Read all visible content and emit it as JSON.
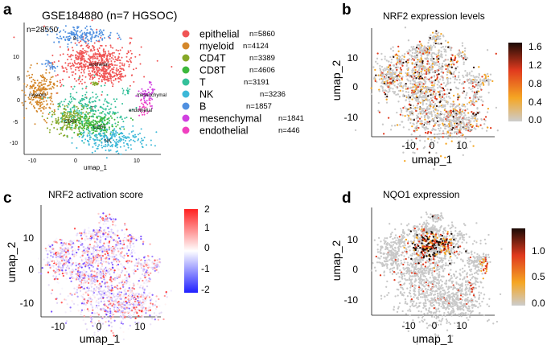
{
  "panels": {
    "a": {
      "letter": "a",
      "title": "GSE184880 (n=7 HGSOC)",
      "total": "n=28550",
      "xlabel": "umap_1",
      "xticks": [
        "-10",
        "0",
        "10"
      ],
      "yticks": [
        "10",
        "5",
        "0",
        "-5",
        "-10"
      ],
      "legend": [
        {
          "name": "epithelial",
          "count": "n=5860",
          "color": "#F05454"
        },
        {
          "name": "myeloid",
          "count": "n=4124",
          "color": "#D4872A"
        },
        {
          "name": "CD4T",
          "count": "n=3389",
          "color": "#86A828"
        },
        {
          "name": "CD8T",
          "count": "n=4606",
          "color": "#3CB83C"
        },
        {
          "name": "T",
          "count": "n=3191",
          "color": "#34C09A"
        },
        {
          "name": "NK",
          "count": "n=3236",
          "color": "#3CB8D8"
        },
        {
          "name": "B",
          "count": "n=1857",
          "color": "#5090E0"
        },
        {
          "name": "mesenchymal",
          "count": "n=1841",
          "color": "#D040E0"
        },
        {
          "name": "endothelial",
          "count": "n=446",
          "color": "#F040C0"
        }
      ],
      "cluster_labels": [
        "B",
        "epithelial",
        "myeloid",
        "mesenchymal",
        "endothelial",
        "T",
        "CD4T",
        "CD8T",
        "NK"
      ]
    },
    "b": {
      "letter": "b",
      "title": "NRF2 expression levels",
      "xlabel": "umap_1",
      "ylabel": "umap_2",
      "xticks": [
        "-10",
        "0",
        "10"
      ],
      "yticks": [
        "10",
        "0",
        "-10"
      ],
      "colorbar_ticks": [
        "1.6",
        "1.2",
        "0.8",
        "0.4",
        "0.0"
      ]
    },
    "c": {
      "letter": "c",
      "title": "NRF2 activation score",
      "xlabel": "umap_1",
      "ylabel": "umap_2",
      "xticks": [
        "-10",
        "0",
        "10"
      ],
      "yticks": [
        "10",
        "0",
        "-10"
      ],
      "colorbar_ticks": [
        "2",
        "1",
        "0",
        "-1",
        "-2"
      ]
    },
    "d": {
      "letter": "d",
      "title": "NQO1 expression",
      "xlabel": "umap_1",
      "ylabel": "umap_2",
      "xticks": [
        "-10",
        "0",
        "10"
      ],
      "yticks": [
        "10",
        "0",
        "-10"
      ],
      "colorbar_ticks": [
        "1.0",
        "0.5",
        "0.0"
      ]
    }
  },
  "chart_data": [
    {
      "type": "scatter",
      "title": "GSE184880 (n=7 HGSOC)",
      "xlabel": "umap_1",
      "xlim": [
        -13,
        15
      ],
      "ylim": [
        -12,
        17
      ],
      "series": [
        {
          "name": "epithelial",
          "points": [
            [
              2,
              10
            ],
            [
              5,
              8
            ],
            [
              6,
              10
            ]
          ],
          "color": "#F05454"
        },
        {
          "name": "myeloid",
          "points": [
            [
              -10,
              1
            ],
            [
              -11,
              0
            ]
          ],
          "color": "#D4872A"
        },
        {
          "name": "CD4T",
          "points": [
            [
              -5,
              -5
            ],
            [
              -3,
              -6
            ]
          ],
          "color": "#86A828"
        },
        {
          "name": "CD8T",
          "points": [
            [
              2,
              -5
            ],
            [
              4,
              -6
            ]
          ],
          "color": "#3CB83C"
        },
        {
          "name": "T",
          "points": [
            [
              0,
              -2
            ],
            [
              2,
              -1
            ]
          ],
          "color": "#34C09A"
        },
        {
          "name": "NK",
          "points": [
            [
              6,
              -9
            ],
            [
              8,
              -8
            ]
          ],
          "color": "#3CB8D8"
        },
        {
          "name": "B",
          "points": [
            [
              0,
              16
            ],
            [
              3,
              15
            ]
          ],
          "color": "#5090E0"
        },
        {
          "name": "mesenchymal",
          "points": [
            [
              12,
              1
            ],
            [
              14,
              1
            ]
          ],
          "color": "#D040E0"
        },
        {
          "name": "endothelial",
          "points": [
            [
              10,
              -2
            ],
            [
              11,
              -4
            ]
          ],
          "color": "#F040C0"
        }
      ]
    },
    {
      "type": "scatter",
      "title": "NRF2 expression levels",
      "xlabel": "umap_1",
      "ylabel": "umap_2",
      "color_scale": {
        "min": 0.0,
        "max": 1.6,
        "colors": [
          "#cccccc",
          "#f5a623",
          "#e03a1e",
          "#1a0a05"
        ]
      }
    },
    {
      "type": "scatter",
      "title": "NRF2 activation score",
      "xlabel": "umap_1",
      "ylabel": "umap_2",
      "color_scale": {
        "min": -2,
        "max": 2,
        "colors": [
          "#2020ff",
          "#ffffff",
          "#ff2020"
        ]
      }
    },
    {
      "type": "scatter",
      "title": "NQO1 expression",
      "xlabel": "umap_1",
      "ylabel": "umap_2",
      "color_scale": {
        "min": 0.0,
        "max": 1.2,
        "colors": [
          "#cccccc",
          "#f5a623",
          "#e03a1e",
          "#1a0a05"
        ]
      }
    }
  ]
}
